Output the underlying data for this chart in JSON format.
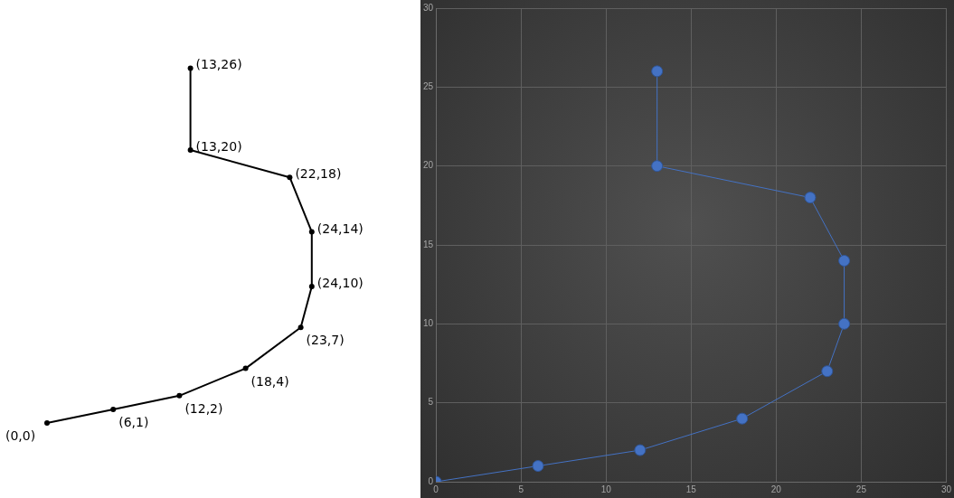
{
  "chart_data": [
    {
      "type": "other",
      "annotations": [
        "(0,0)",
        "(6,1)",
        "(12,2)",
        "(18,4)",
        "(23,7)",
        "(24,10)",
        "(24,14)",
        "(22,18)",
        "(13,20)",
        "(13,26)"
      ]
    },
    {
      "type": "line",
      "x": [
        0,
        6,
        12,
        18,
        23,
        24,
        24,
        22,
        13,
        13
      ],
      "values": [
        0,
        1,
        2,
        4,
        7,
        10,
        14,
        18,
        20,
        26
      ],
      "color": "#4472c4",
      "marker": "circle",
      "grid": true,
      "xlim": [
        0,
        30
      ],
      "ylim": [
        0,
        30
      ],
      "xticks": [
        0,
        5,
        10,
        15,
        20,
        25,
        30
      ],
      "yticks": [
        0,
        5,
        10,
        15,
        20,
        25,
        30
      ]
    }
  ]
}
